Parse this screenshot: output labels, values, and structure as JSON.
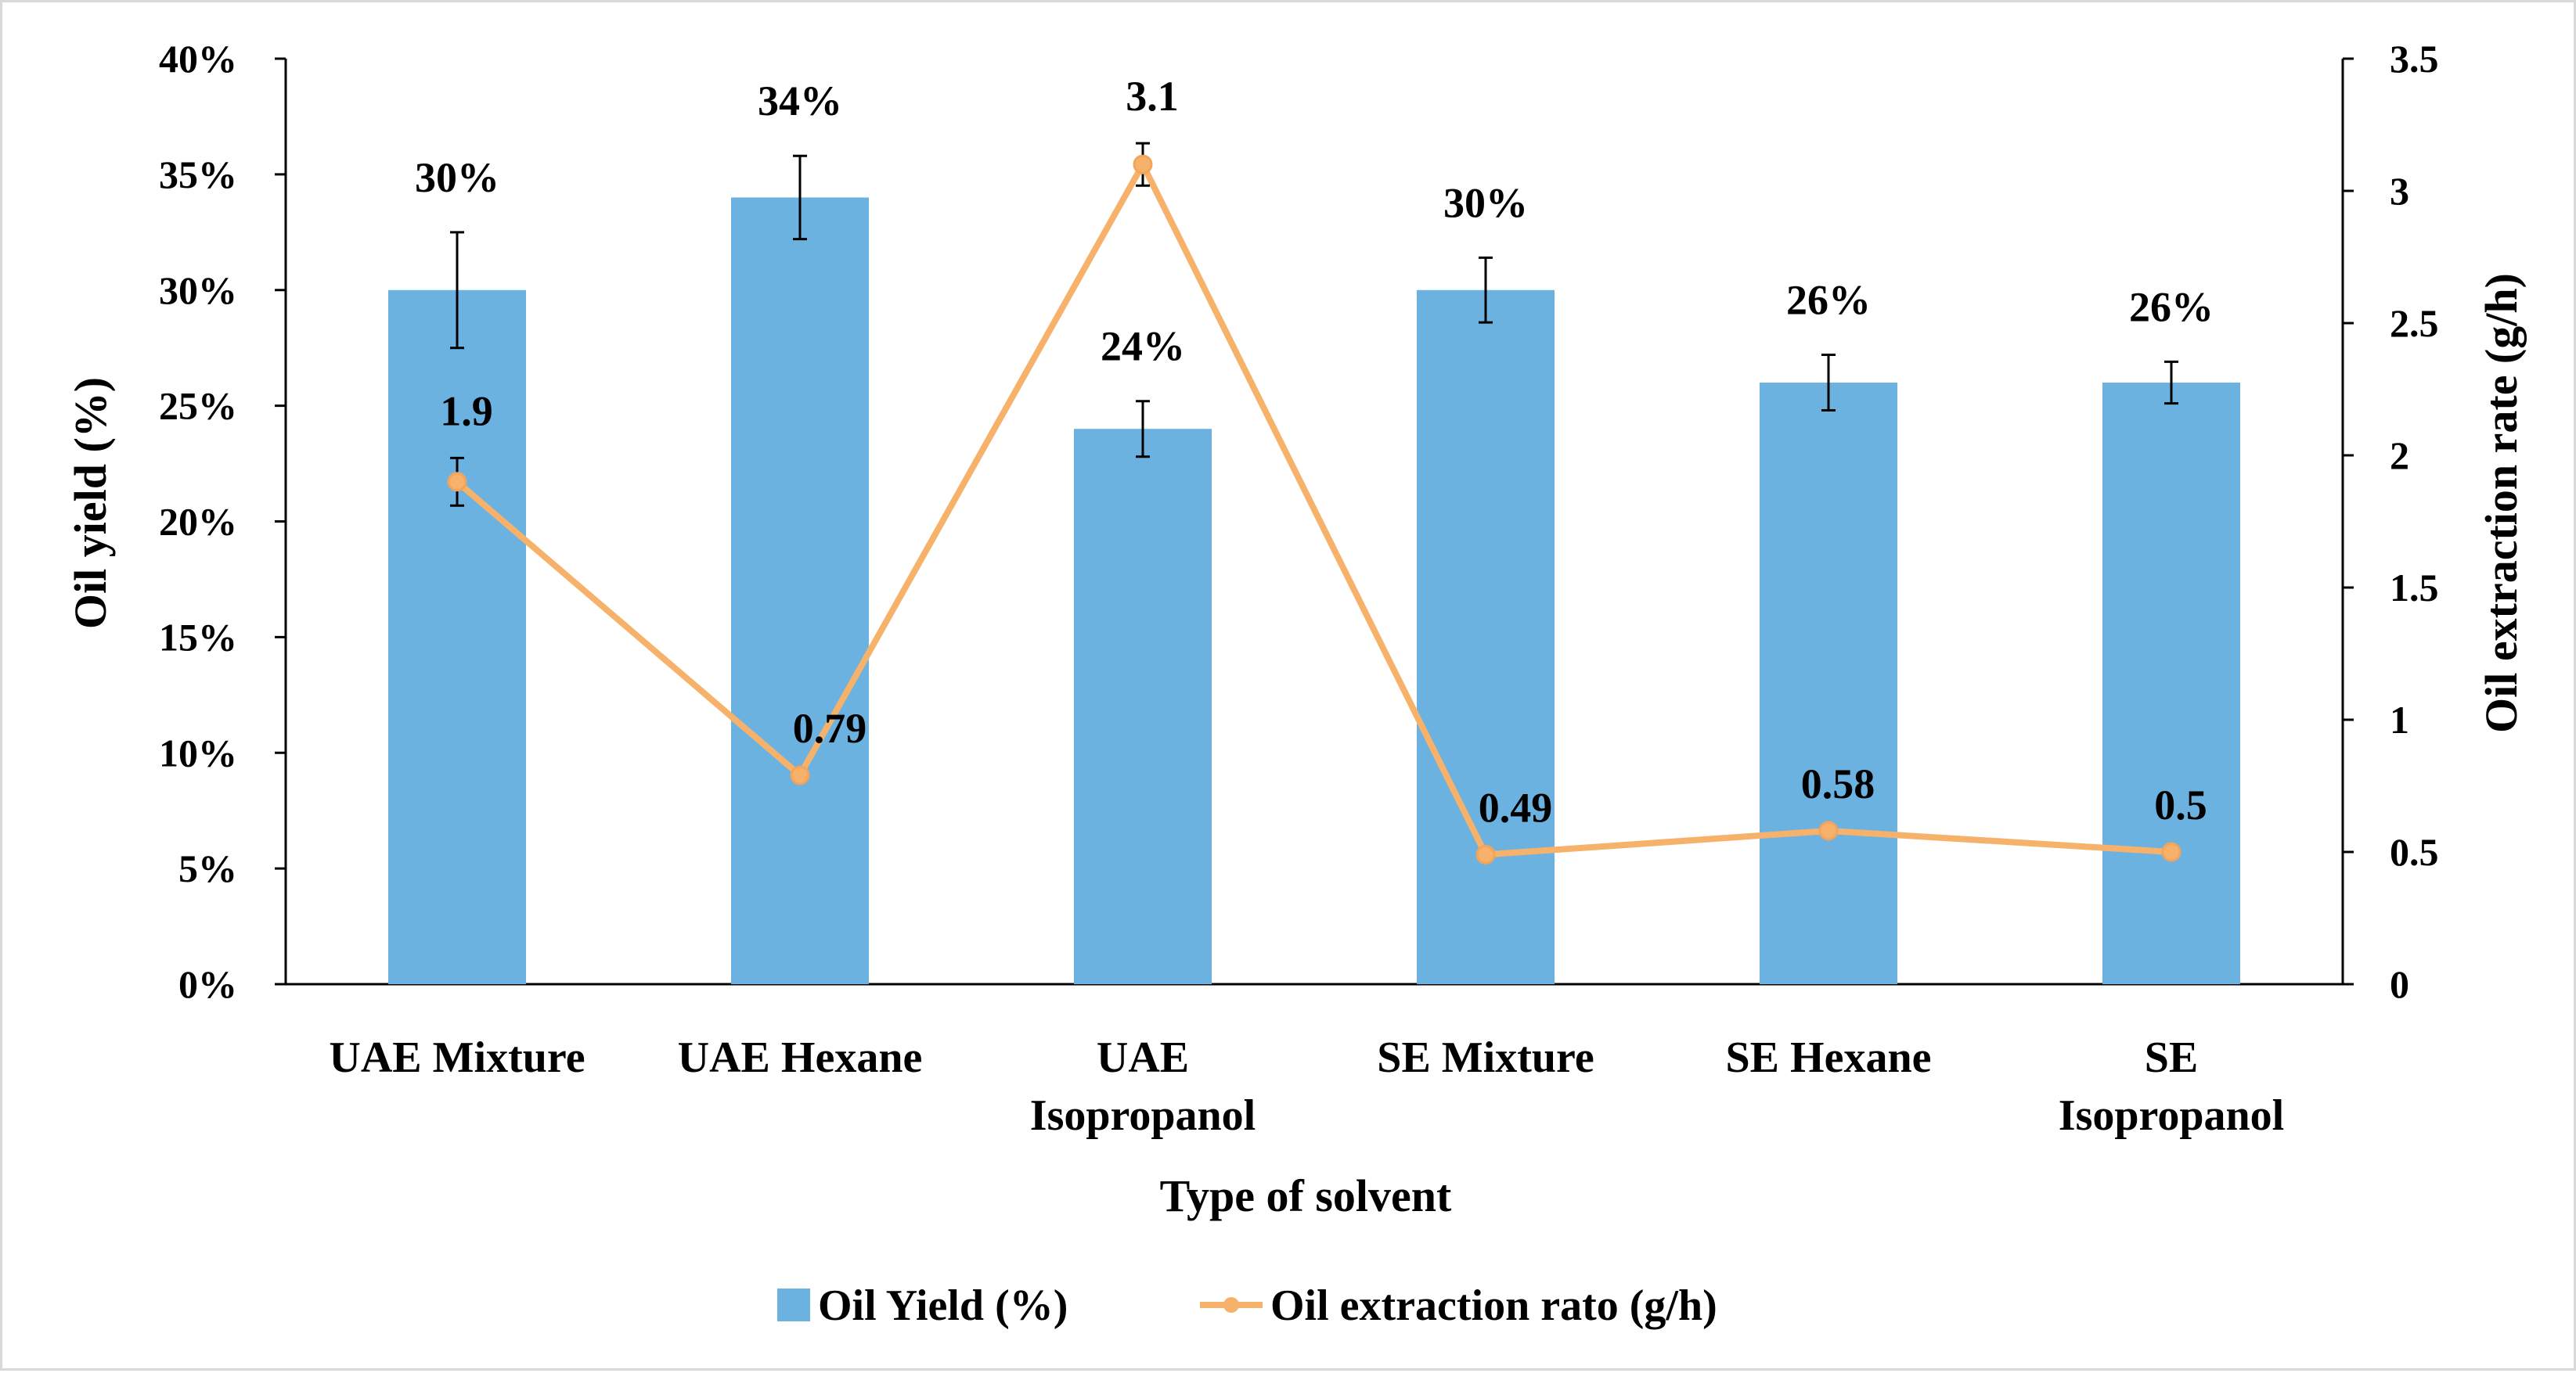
{
  "chart_data": {
    "type": "bar",
    "title": "",
    "categories": [
      [
        "UAE Mixture"
      ],
      [
        "UAE Hexane"
      ],
      [
        "UAE",
        "Isopropanol"
      ],
      [
        "SE Mixture"
      ],
      [
        "SE Hexane"
      ],
      [
        "SE",
        "Isopropanol"
      ]
    ],
    "xlabel": "Type of solvent",
    "ylabel": "Oil yield (%)",
    "y2label": "Oil extraction rate (g/h)",
    "ylim": [
      0,
      40
    ],
    "y2lim": [
      0,
      3.5
    ],
    "yticks": [
      "0%",
      "5%",
      "10%",
      "15%",
      "20%",
      "25%",
      "30%",
      "35%",
      "40%"
    ],
    "y2ticks": [
      "0",
      "0.5",
      "1",
      "1.5",
      "2",
      "2.5",
      "3",
      "3.5"
    ],
    "series": [
      {
        "name": "Oil Yield (%)",
        "type": "bar",
        "axis": "left",
        "color": "#6cb2e0",
        "values": [
          30,
          34,
          24,
          30,
          26,
          26
        ],
        "errors": [
          2.5,
          1.8,
          1.2,
          1.4,
          1.2,
          0.9
        ],
        "labels": [
          "30%",
          "34%",
          "24%",
          "30%",
          "26%",
          "26%"
        ]
      },
      {
        "name": "Oil extraction rato (g/h)",
        "type": "line",
        "axis": "right",
        "color": "#f6b26b",
        "values": [
          1.9,
          0.79,
          3.1,
          0.49,
          0.58,
          0.5
        ],
        "errors": [
          0.09,
          0,
          0.08,
          0,
          0,
          0
        ],
        "labels": [
          "1.9",
          "0.79",
          "3.1",
          "0.49",
          "0.58",
          "0.5"
        ]
      }
    ],
    "legend": {
      "placement": "bottom-center"
    }
  }
}
